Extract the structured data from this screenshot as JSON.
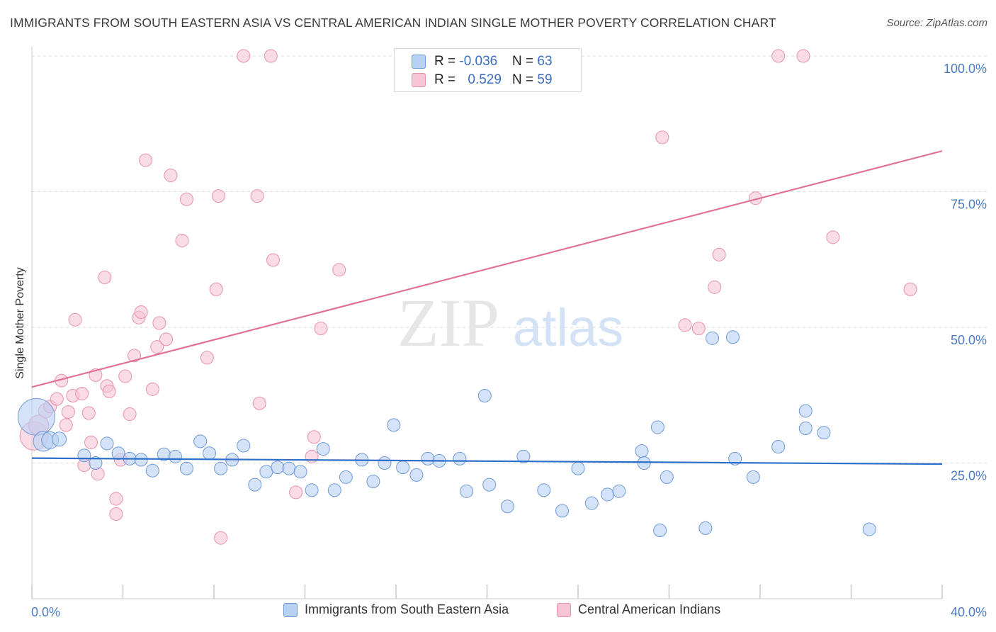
{
  "header": {
    "title": "IMMIGRANTS FROM SOUTH EASTERN ASIA VS CENTRAL AMERICAN INDIAN SINGLE MOTHER POVERTY CORRELATION CHART",
    "source": "Source: ZipAtlas.com"
  },
  "watermark": {
    "zip": "ZIP",
    "atlas": "atlas"
  },
  "legend_top": {
    "rows": [
      {
        "r_label": "R = ",
        "r_value": "-0.036",
        "n_label": "N = ",
        "n_value": "63"
      },
      {
        "r_label": "R = ",
        "r_value": "0.529",
        "n_label": "N = ",
        "n_value": "59"
      }
    ]
  },
  "colors": {
    "blue_fill": "#b7d1f3",
    "blue_stroke": "#6f9ad8",
    "blue_line": "#2e6fc9",
    "pink_fill": "#f7c5d5",
    "pink_stroke": "#e891ad",
    "pink_line": "#e0729a",
    "grid": "#dcdcdc",
    "axis": "#cccccc",
    "tick_text": "#4a7cc0"
  },
  "chart_data": {
    "type": "scatter",
    "title": "IMMIGRANTS FROM SOUTH EASTERN ASIA VS CENTRAL AMERICAN INDIAN SINGLE MOTHER POVERTY CORRELATION CHART",
    "xlabel": "",
    "ylabel": "Single Mother Poverty",
    "xlim": [
      0,
      40
    ],
    "ylim": [
      0,
      100
    ],
    "x_tick_labels": [
      "0.0%",
      "40.0%"
    ],
    "y_ticks": [
      25,
      50,
      75,
      100
    ],
    "y_tick_labels": [
      "25.0%",
      "50.0%",
      "75.0%",
      "100.0%"
    ],
    "grid": true,
    "legend_position": "bottom",
    "series": [
      {
        "name": "Immigrants from South Eastern Asia",
        "color": "blue",
        "r": -0.036,
        "n": 63,
        "trend": {
          "y_start": 25.9,
          "y_end": 24.8
        },
        "points": [
          [
            0.2,
            33.5,
            26
          ],
          [
            0.5,
            29.0,
            14
          ],
          [
            0.8,
            29.2,
            12
          ],
          [
            1.2,
            29.4,
            10
          ],
          [
            2.3,
            26.4,
            9
          ],
          [
            2.8,
            25.0,
            9
          ],
          [
            3.3,
            28.6,
            9
          ],
          [
            3.8,
            26.8,
            9
          ],
          [
            4.3,
            25.8,
            9
          ],
          [
            4.8,
            25.6,
            9
          ],
          [
            5.3,
            23.6,
            9
          ],
          [
            5.8,
            26.6,
            9
          ],
          [
            6.3,
            26.2,
            9
          ],
          [
            6.8,
            24.0,
            9
          ],
          [
            7.4,
            29.0,
            9
          ],
          [
            7.8,
            26.8,
            9
          ],
          [
            8.3,
            24.0,
            9
          ],
          [
            8.8,
            25.6,
            9
          ],
          [
            9.3,
            28.2,
            9
          ],
          [
            9.8,
            21.0,
            9
          ],
          [
            10.3,
            23.4,
            9
          ],
          [
            10.8,
            24.2,
            9
          ],
          [
            11.3,
            24.0,
            9
          ],
          [
            11.8,
            23.4,
            9
          ],
          [
            12.3,
            20.0,
            9
          ],
          [
            12.8,
            27.6,
            9
          ],
          [
            13.3,
            20.0,
            9
          ],
          [
            13.8,
            22.4,
            9
          ],
          [
            14.5,
            25.6,
            9
          ],
          [
            15.0,
            21.6,
            9
          ],
          [
            15.5,
            25.0,
            9
          ],
          [
            15.9,
            32.0,
            9
          ],
          [
            16.3,
            24.2,
            9
          ],
          [
            16.9,
            22.8,
            9
          ],
          [
            17.4,
            25.8,
            9
          ],
          [
            17.9,
            25.4,
            9
          ],
          [
            18.8,
            25.8,
            9
          ],
          [
            19.1,
            19.8,
            9
          ],
          [
            19.9,
            37.4,
            9
          ],
          [
            20.1,
            21.0,
            9
          ],
          [
            20.9,
            17.0,
            9
          ],
          [
            21.6,
            26.2,
            9
          ],
          [
            22.5,
            20.0,
            9
          ],
          [
            23.3,
            16.2,
            9
          ],
          [
            24.0,
            24.0,
            9
          ],
          [
            24.6,
            17.6,
            9
          ],
          [
            25.3,
            19.2,
            9
          ],
          [
            25.8,
            19.8,
            9
          ],
          [
            26.8,
            27.2,
            9
          ],
          [
            26.9,
            25.0,
            9
          ],
          [
            27.5,
            31.6,
            9
          ],
          [
            27.9,
            22.4,
            9
          ],
          [
            27.6,
            12.6,
            9
          ],
          [
            29.6,
            13.0,
            9
          ],
          [
            30.8,
            48.2,
            9
          ],
          [
            29.9,
            48.0,
            9
          ],
          [
            30.9,
            25.8,
            9
          ],
          [
            31.7,
            22.4,
            9
          ],
          [
            32.8,
            28.0,
            9
          ],
          [
            34.0,
            34.6,
            9
          ],
          [
            34.0,
            31.4,
            9
          ],
          [
            34.8,
            30.6,
            9
          ],
          [
            36.8,
            12.8,
            9
          ]
        ]
      },
      {
        "name": "Central American Indians",
        "color": "pink",
        "r": 0.529,
        "n": 59,
        "trend": {
          "y_start": 39.0,
          "y_end": 82.5
        },
        "points": [
          [
            0.1,
            30.0,
            20
          ],
          [
            0.3,
            32.0,
            14
          ],
          [
            0.6,
            34.6,
            10
          ],
          [
            0.8,
            35.4,
            9
          ],
          [
            1.1,
            36.8,
            9
          ],
          [
            1.3,
            40.2,
            9
          ],
          [
            1.5,
            32.0,
            9
          ],
          [
            1.6,
            34.4,
            9
          ],
          [
            1.9,
            51.4,
            9
          ],
          [
            1.8,
            37.4,
            9
          ],
          [
            2.2,
            37.8,
            9
          ],
          [
            2.3,
            24.6,
            9
          ],
          [
            2.5,
            34.2,
            9
          ],
          [
            2.6,
            28.8,
            9
          ],
          [
            2.8,
            41.2,
            9
          ],
          [
            2.9,
            23.0,
            9
          ],
          [
            3.2,
            59.2,
            9
          ],
          [
            3.3,
            39.2,
            9
          ],
          [
            3.4,
            38.2,
            9
          ],
          [
            3.7,
            18.4,
            9
          ],
          [
            3.7,
            15.6,
            9
          ],
          [
            3.9,
            25.6,
            9
          ],
          [
            4.1,
            41.0,
            9
          ],
          [
            4.3,
            34.0,
            9
          ],
          [
            4.5,
            44.8,
            9
          ],
          [
            4.7,
            51.8,
            9
          ],
          [
            4.8,
            52.8,
            9
          ],
          [
            5.0,
            80.8,
            9
          ],
          [
            5.3,
            38.6,
            9
          ],
          [
            5.5,
            46.4,
            9
          ],
          [
            5.6,
            50.8,
            9
          ],
          [
            5.9,
            47.8,
            9
          ],
          [
            6.1,
            78.0,
            9
          ],
          [
            6.6,
            66.0,
            9
          ],
          [
            6.8,
            73.6,
            9
          ],
          [
            7.7,
            44.4,
            9
          ],
          [
            8.1,
            57.0,
            9
          ],
          [
            8.2,
            74.2,
            9
          ],
          [
            8.3,
            11.2,
            9
          ],
          [
            9.3,
            100.0,
            9
          ],
          [
            9.9,
            74.2,
            9
          ],
          [
            10.5,
            100.0,
            9
          ],
          [
            10.6,
            62.4,
            9
          ],
          [
            11.6,
            19.6,
            9
          ],
          [
            12.3,
            26.2,
            9
          ],
          [
            12.7,
            49.8,
            9
          ],
          [
            13.5,
            60.6,
            9
          ],
          [
            27.7,
            85.0,
            9
          ],
          [
            28.7,
            50.4,
            9
          ],
          [
            29.3,
            49.8,
            9
          ],
          [
            30.0,
            57.4,
            9
          ],
          [
            30.2,
            63.4,
            9
          ],
          [
            31.8,
            73.8,
            9
          ],
          [
            32.8,
            100.0,
            9
          ],
          [
            33.9,
            100.0,
            9
          ],
          [
            35.2,
            66.6,
            9
          ],
          [
            38.6,
            57.0,
            9
          ],
          [
            12.4,
            29.8,
            9
          ],
          [
            10.0,
            36.0,
            9
          ]
        ]
      }
    ]
  }
}
